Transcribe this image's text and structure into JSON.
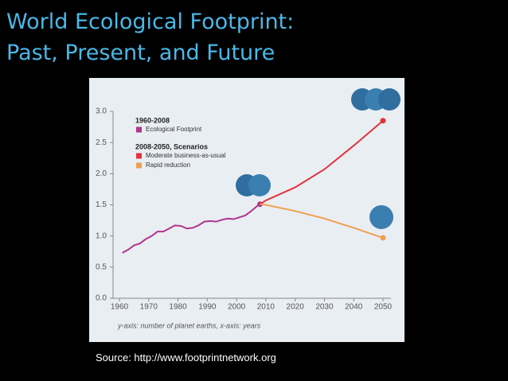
{
  "title_lines": [
    "World Ecological Footprint:",
    "Past, Present, and Future"
  ],
  "source": "Source: http://www.footprintnetwork.org",
  "chart_data": {
    "type": "line",
    "legend_headings": [
      "1960-2008",
      "2008-2050, Scenarios"
    ],
    "axis_note": "y-axis: number of planet earths, x-axis: years",
    "xlim": [
      1960,
      2050
    ],
    "xticks": [
      1960,
      1970,
      1980,
      1990,
      2000,
      2010,
      2020,
      2030,
      2040,
      2050
    ],
    "ylim": [
      0,
      3
    ],
    "yticks": [
      {
        "value": 0,
        "label": "0.0"
      },
      0.5,
      {
        "value": 1,
        "label": "1.0"
      },
      1.5,
      {
        "value": 2,
        "label": "2.0"
      },
      2.5,
      {
        "value": 3,
        "label": "3.0"
      }
    ],
    "series": [
      {
        "name": "Ecological Footprint",
        "color": "#b0348c",
        "x": [
          1961,
          1963,
          1965,
          1967,
          1969,
          1971,
          1973,
          1975,
          1977,
          1979,
          1981,
          1983,
          1985,
          1987,
          1989,
          1991,
          1993,
          1995,
          1997,
          1999,
          2001,
          2003,
          2005,
          2007,
          2008
        ],
        "values": [
          0.73,
          0.78,
          0.85,
          0.88,
          0.95,
          1.0,
          1.07,
          1.07,
          1.12,
          1.17,
          1.16,
          1.12,
          1.13,
          1.17,
          1.23,
          1.24,
          1.23,
          1.26,
          1.28,
          1.27,
          1.3,
          1.33,
          1.4,
          1.48,
          1.51
        ]
      },
      {
        "name": "Moderate business-as-usual",
        "color": "#e2323c",
        "x": [
          2008,
          2010,
          2020,
          2030,
          2040,
          2050
        ],
        "values": [
          1.51,
          1.57,
          1.78,
          2.07,
          2.45,
          2.85
        ]
      },
      {
        "name": "Rapid reduction",
        "color": "#f0a050",
        "x": [
          2008,
          2010,
          2020,
          2030,
          2040,
          2050
        ],
        "values": [
          1.51,
          1.5,
          1.4,
          1.28,
          1.13,
          0.97
        ]
      }
    ]
  }
}
